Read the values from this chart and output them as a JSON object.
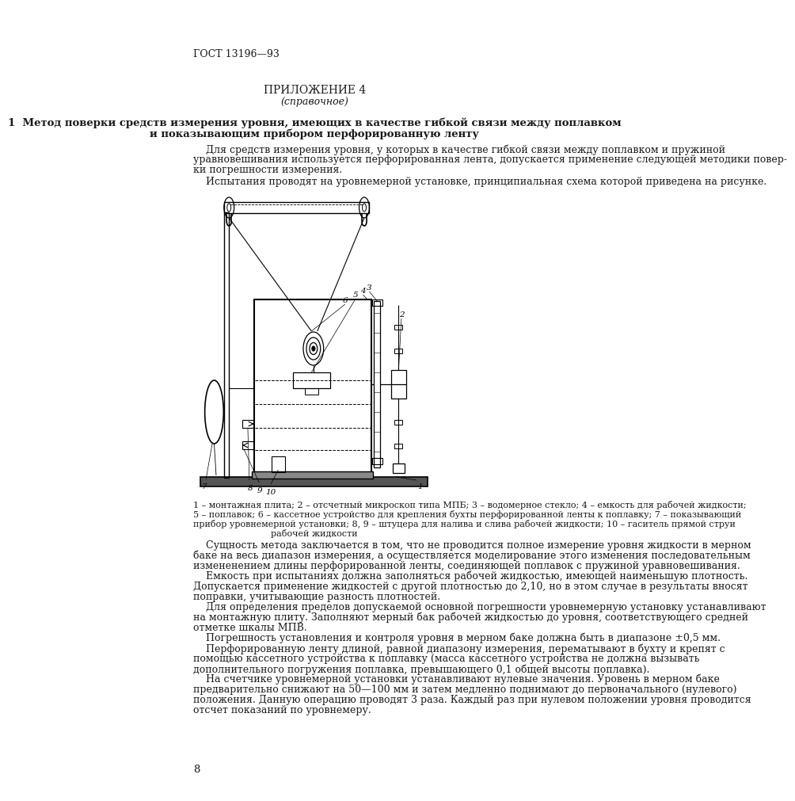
{
  "page_header": "ГОСТ 13196—93",
  "appendix_title": "ПРИЛОЖЕНИЕ 4",
  "appendix_subtitle": "(справочное)",
  "section_title": "1  Метод поверки средств измерения уровня, имеющих в качестве гибкой связи между поплавком",
  "section_title2": "и показывающим прибором перфорированную ленту",
  "para1": "    Для средств измерения уровня, у которых в качестве гибкой связи между поплавком и пружиной",
  "para1b": "уравновешивания используется перфорированная лента, допускается применение следующей методики повер-",
  "para1c": "ки погрешности измерения.",
  "para2": "    Испытания проводят на уровнемерной установке, принципиальная схема которой приведена на рисунке.",
  "caption_line1": "1 – монтажная плита; 2 – отсчетный микроскоп типа МПБ; 3 – водомерное стекло; 4 – емкость для рабочей жидкости;",
  "caption_line2": "5 – поплавок; 6 – кассетное устройство для крепления бухты перфорированной ленты к поплавку; 7 – показывающий",
  "caption_line3": "прибор уровнемерной установки; 8, 9 – штуцера для налива и слива рабочей жидкости; 10 – гаситель прямой струи",
  "caption_line4": "рабочей жидкости",
  "body_paragraphs": [
    "    Сущность метода заключается в том, что не проводится полное измерение уровня жидкости в мерном баке на весь диапазон измерения, а осуществляется моделирование этого изменения последовательным измененением длины перфорированной ленты, соединяющей поплавок с пружиной уравновешивания.",
    "    Емкость при испытаниях должна заполняться рабочей жидкостью, имеющей наименьшую плотность. Допускается применение жидкостей с другой плотностью до 2,10, но в этом случае в результаты вносят поправки, учитывающие разность плотностей.",
    "    Для определения пределов допускаемой основной погрешности уровнемерную установку устанавливают на монтажную плиту. Заполняют мерный бак рабочей жидкостью до уровня, соответствующего средней отметке шкалы МПВ.",
    "    Погрешность установления и контроля уровня в мерном баке должна быть в диапазоне ±0,5 мм.",
    "    Перфорированную ленту длиной, равной диапазону измерения, перематывают в бухту и крепят с помощью кассетного устройства к поплавку (масса кассетного устройства не должна вызывать дополнительного погружения поплавка, превышающего 0,1 общей высоты поплавка).",
    "    На счетчике уровнемерной установки устанавливают нулевые значения. Уровень в мерном баке предварительно снижают на 50—100 мм и затем медленно поднимают до первоначального (нулевого) положения. Данную операцию проводят 3 раза. Каждый раз при нулевом положении уровня проводится отсчет показаний по уровнемеру."
  ],
  "page_number": "8",
  "bg_color": "#ffffff",
  "text_color": "#1a1a1a"
}
